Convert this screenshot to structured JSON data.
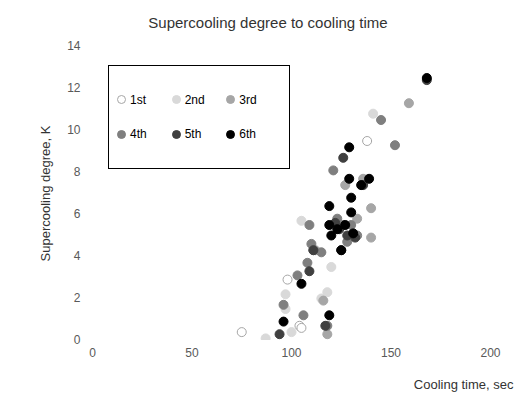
{
  "chart_data": {
    "type": "scatter",
    "title": "Supercooling degree to cooling time",
    "x_label": "Cooling time, sec",
    "y_label": "Supercooling degree, K",
    "xlim": [
      0,
      200
    ],
    "xticks": [
      0,
      50,
      100,
      150,
      200
    ],
    "ylim": [
      0,
      14
    ],
    "yticks": [
      0,
      2,
      4,
      6,
      8,
      10,
      12,
      14
    ],
    "legend": "top-left",
    "series": [
      {
        "name": "1st",
        "color": "#a6a6a6",
        "marker": "open_circle",
        "x": [
          75,
          98,
          104,
          105,
          138
        ],
        "values": [
          0.4,
          2.9,
          0.7,
          0.6,
          9.5
        ]
      },
      {
        "name": "2nd",
        "color": "#d9d9d9",
        "marker": "circle",
        "x": [
          87,
          97,
          97,
          105,
          120,
          118,
          141,
          115,
          100
        ],
        "values": [
          0.1,
          2.2,
          1.5,
          5.7,
          3.5,
          2.3,
          10.8,
          2.0,
          0.4
        ]
      },
      {
        "name": "3rd",
        "color": "#a6a6a6",
        "marker": "circle",
        "x": [
          127,
          140,
          140,
          159,
          133,
          116,
          118,
          136,
          112
        ],
        "values": [
          7.4,
          6.3,
          4.9,
          11.3,
          5.8,
          1.9,
          0.3,
          7.7,
          4.3
        ]
      },
      {
        "name": "4th",
        "color": "#7f7f7f",
        "marker": "circle",
        "x": [
          103,
          106,
          108,
          109,
          110,
          111,
          115,
          121,
          126,
          145,
          152,
          96,
          118,
          123,
          130,
          131,
          133,
          128
        ],
        "values": [
          3.1,
          1.2,
          3.7,
          5.5,
          4.6,
          4.3,
          4.2,
          8.1,
          5.5,
          10.5,
          9.3,
          1.7,
          0.7,
          5.8,
          5.5,
          5.1,
          5.0,
          4.7
        ]
      },
      {
        "name": "5th",
        "color": "#404040",
        "marker": "circle",
        "x": [
          94,
          109,
          111,
          124,
          126,
          128,
          132,
          136,
          168,
          117,
          122,
          125
        ],
        "values": [
          0.3,
          3.3,
          4.3,
          5.3,
          8.7,
          5.0,
          4.9,
          7.4,
          12.4,
          0.7,
          5.6,
          4.3
        ]
      },
      {
        "name": "6th",
        "color": "#000000",
        "marker": "circle",
        "x": [
          96,
          105,
          119,
          119,
          119,
          120,
          123,
          125,
          129,
          129,
          130,
          130,
          131,
          135,
          139,
          168,
          127
        ],
        "values": [
          0.9,
          2.7,
          1.2,
          6.4,
          5.5,
          5.0,
          5.3,
          4.3,
          9.2,
          7.7,
          6.8,
          6.1,
          5.1,
          7.4,
          7.7,
          12.5,
          5.5
        ]
      }
    ]
  }
}
